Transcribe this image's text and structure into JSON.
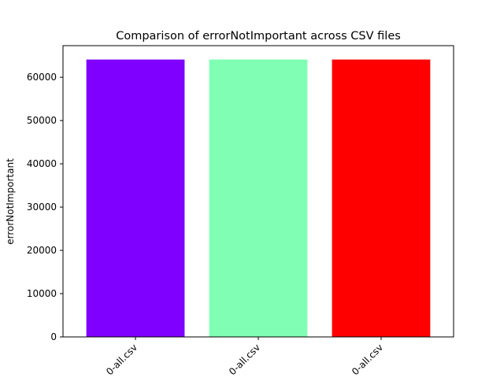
{
  "chart_data": {
    "type": "bar",
    "title": "Comparison of  errorNotImportant  across CSV files",
    "xlabel": "",
    "ylabel": "errorNotImportant",
    "categories": [
      "0-all.csv",
      "0-all.csv",
      "0-all.csv"
    ],
    "values": [
      64100,
      64100,
      64100
    ],
    "colors": [
      "#8000ff",
      "#80ffb4",
      "#ff0000"
    ],
    "ylim": [
      0,
      67305
    ],
    "yticks": [
      0,
      10000,
      20000,
      30000,
      40000,
      50000,
      60000
    ],
    "ytick_labels": [
      "0",
      "10000",
      "20000",
      "30000",
      "40000",
      "50000",
      "60000"
    ],
    "grid": false,
    "legend": "none"
  }
}
